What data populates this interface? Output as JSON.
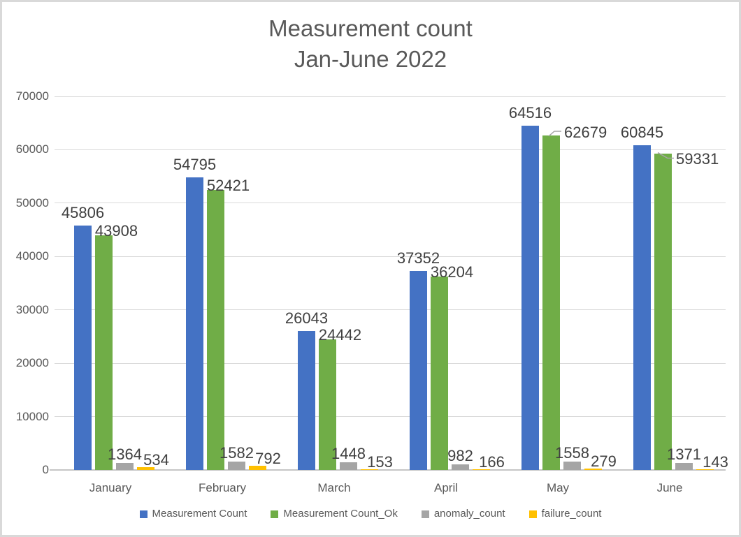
{
  "title": {
    "line1": "Measurement count",
    "line2": "Jan-June 2022"
  },
  "chart_data": {
    "type": "bar",
    "title": "Measurement count Jan-June 2022",
    "categories": [
      "January",
      "February",
      "March",
      "April",
      "May",
      "June"
    ],
    "series": [
      {
        "name": "Measurement Count",
        "color": "#4472C4",
        "values": [
          45806,
          54795,
          26043,
          37352,
          64516,
          60845
        ]
      },
      {
        "name": "Measurement Count_Ok",
        "color": "#70AD47",
        "values": [
          43908,
          52421,
          24442,
          36204,
          62679,
          59331
        ]
      },
      {
        "name": "anomaly_count",
        "color": "#A5A5A5",
        "values": [
          1364,
          1582,
          1448,
          982,
          1558,
          1371
        ]
      },
      {
        "name": "failure_count",
        "color": "#FFC000",
        "values": [
          534,
          792,
          153,
          166,
          279,
          143
        ]
      }
    ],
    "ylim": [
      0,
      70000
    ],
    "ytick_step": 10000,
    "ytick_labels": [
      "0",
      "10000",
      "20000",
      "30000",
      "40000",
      "50000",
      "60000",
      "70000"
    ],
    "grid": "horizontal",
    "legend_position": "bottom",
    "data_labels": "outside-end",
    "label_leaders": [
      {
        "series_index": 1,
        "category": "May",
        "direction": "up"
      },
      {
        "series_index": 1,
        "category": "June",
        "direction": "down"
      }
    ]
  },
  "colors": {
    "title_text": "#595959",
    "axis_text": "#595959",
    "data_label_text": "#404040",
    "gridline": "#D9D9D9",
    "axis_line": "#C6C6C6",
    "leader_line": "#A6A6A6",
    "frame_border": "#D9D9D9"
  }
}
